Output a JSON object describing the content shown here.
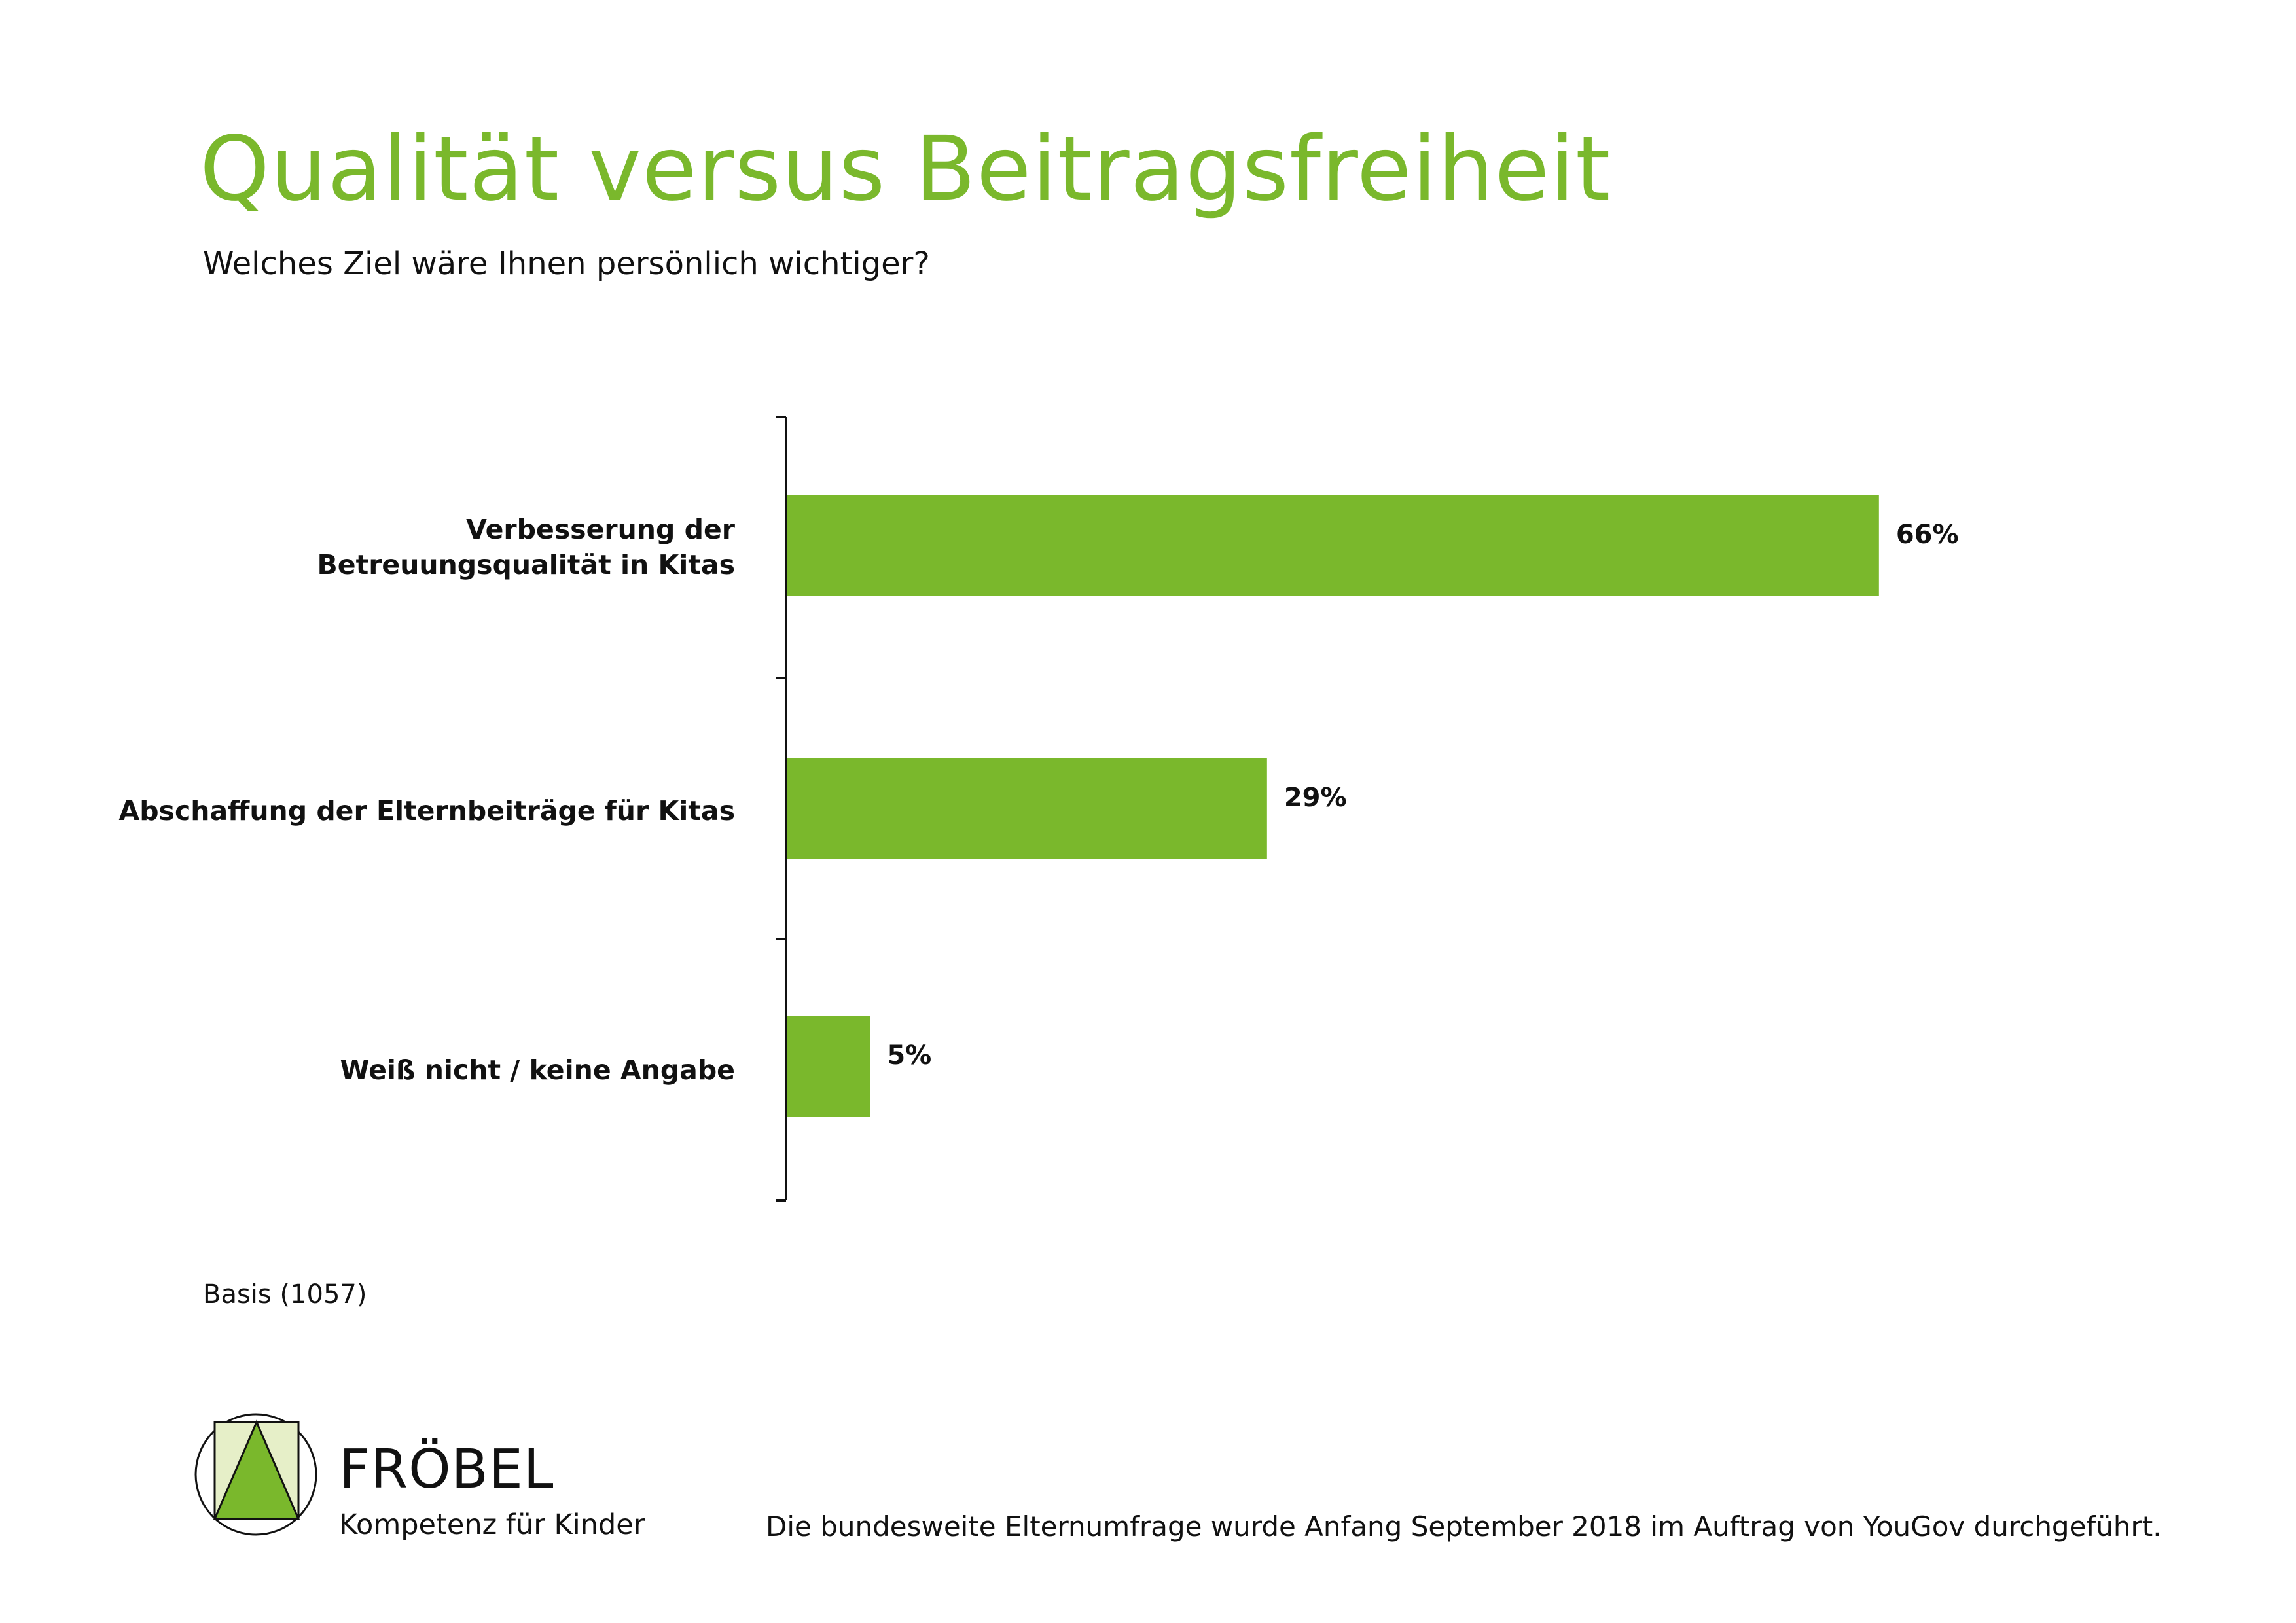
{
  "title": "Qualität versus Beitragsfreiheit",
  "subtitle": "Welches Ziel wäre Ihnen persönlich wichtiger?",
  "chart_data": {
    "type": "bar",
    "orientation": "horizontal",
    "categories": [
      "Verbesserung der Betreuungsqualität in Kitas",
      "Abschaffung der Elternbeiträge für Kitas",
      "Weiß nicht / keine Angabe"
    ],
    "category_lines": [
      [
        "Verbesserung der",
        "Betreuungsqualität in Kitas"
      ],
      [
        "Abschaffung der Elternbeiträge für Kitas"
      ],
      [
        "Weiß nicht / keine Angabe"
      ]
    ],
    "values": [
      66,
      29,
      5
    ],
    "data_labels": [
      "66%",
      "29%",
      "5%"
    ],
    "unit": "%",
    "xlim": [
      0,
      100
    ],
    "grid": false,
    "bar_color": "#7ab82c"
  },
  "basis": "Basis (1057)",
  "footer": {
    "brand": "FRÖBEL",
    "tagline": "Kompetenz für Kinder",
    "note": "Die bundesweite Elternumfrage wurde Anfang September 2018 im Auftrag von YouGov durchgeführt."
  },
  "colors": {
    "accent": "#7ab82c",
    "logo_light": "#e6efc8"
  }
}
